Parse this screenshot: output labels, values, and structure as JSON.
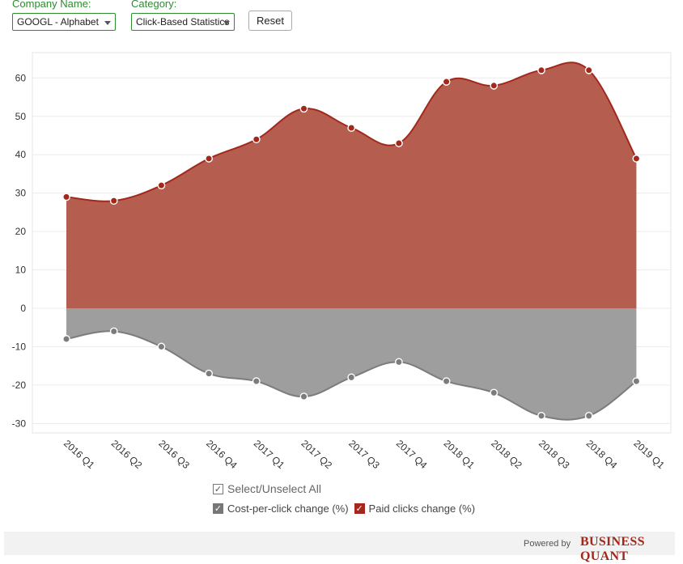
{
  "controls": {
    "company_label": "Company Name:",
    "company_value": "GOOGL - Alphabet",
    "category_label": "Category:",
    "category_value": "Click-Based Statistics",
    "reset_label": "Reset"
  },
  "legend": {
    "select_all": "Select/Unselect All",
    "items": [
      "Cost-per-click change (%)",
      "Paid clicks change (%)"
    ]
  },
  "footer": {
    "powered_by": "Powered by",
    "brand": "BUSINESS QUANT"
  },
  "colors": {
    "paid_clicks": "#a3281b",
    "cpc": "#8e8d8d",
    "accent_green": "#2e8b2e"
  },
  "chart_data": {
    "type": "area",
    "categories": [
      "2016 Q1",
      "2016 Q2",
      "2016 Q3",
      "2016 Q4",
      "2017 Q1",
      "2017 Q2",
      "2017 Q3",
      "2017 Q4",
      "2018 Q1",
      "2018 Q2",
      "2018 Q3",
      "2018 Q4",
      "2019 Q1"
    ],
    "series": [
      {
        "name": "Cost-per-click change (%)",
        "color": "#8e8d8d",
        "values": [
          -8,
          -6,
          -10,
          -17,
          -19,
          -23,
          -18,
          -14,
          -19,
          -22,
          -28,
          -28,
          -19
        ]
      },
      {
        "name": "Paid clicks change (%)",
        "color": "#a3281b",
        "values": [
          29,
          28,
          32,
          39,
          44,
          52,
          47,
          43,
          59,
          58,
          62,
          62,
          39
        ]
      }
    ],
    "y_ticks": [
      60,
      50,
      40,
      30,
      20,
      10,
      0,
      -10,
      -20,
      -30
    ],
    "ylim": [
      -32,
      66
    ],
    "grid": true,
    "legend_position": "bottom"
  }
}
